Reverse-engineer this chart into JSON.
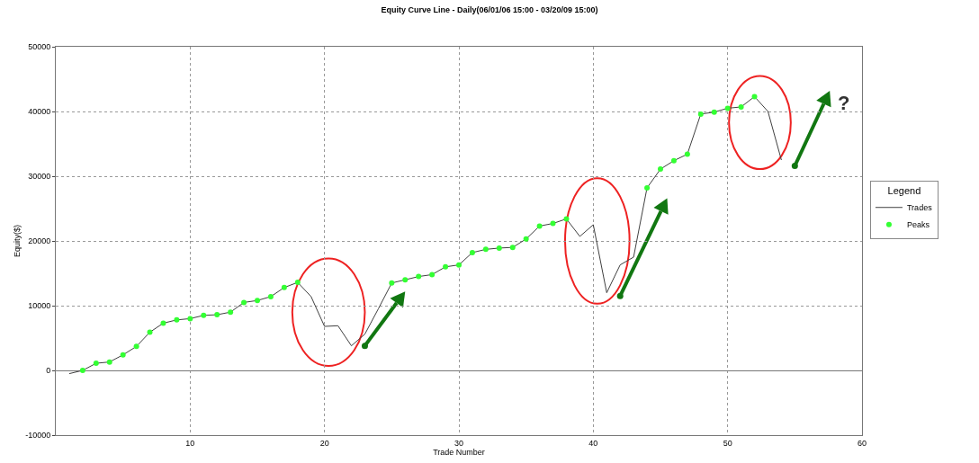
{
  "chart_data": {
    "type": "line",
    "title": "Equity Curve Line - Daily(06/01/06 15:00 - 03/20/09 15:00)",
    "xlabel": "Trade Number",
    "ylabel": "Equity($)",
    "legend_title": "Legend",
    "x": [
      1,
      2,
      3,
      4,
      5,
      6,
      7,
      8,
      9,
      10,
      11,
      12,
      13,
      14,
      15,
      16,
      17,
      18,
      19,
      20,
      21,
      22,
      23,
      24,
      25,
      26,
      27,
      28,
      29,
      30,
      31,
      32,
      33,
      34,
      35,
      36,
      37,
      38,
      39,
      40,
      41,
      42,
      43,
      44,
      45,
      46,
      47,
      48,
      49,
      50,
      51,
      52,
      53,
      54
    ],
    "series": [
      {
        "name": "Trades",
        "color": "#404040",
        "marker": "none",
        "values": [
          -500,
          0,
          1100,
          1300,
          2400,
          3700,
          5900,
          7300,
          7800,
          8000,
          8500,
          8600,
          9000,
          10500,
          10800,
          11400,
          12800,
          13600,
          11400,
          6800,
          6900,
          3800,
          5600,
          9500,
          13500,
          14000,
          14500,
          14800,
          16000,
          16300,
          18200,
          18700,
          18900,
          19000,
          20300,
          22300,
          22700,
          23400,
          20700,
          22500,
          12000,
          16300,
          17500,
          28200,
          31100,
          32400,
          33400,
          39600,
          39900,
          40500,
          40700,
          42300,
          40000,
          32500
        ]
      },
      {
        "name": "Peaks",
        "type": "scatter",
        "color": "#33ff33",
        "marker": "circle",
        "x": [
          2,
          3,
          4,
          5,
          6,
          7,
          8,
          9,
          10,
          11,
          12,
          13,
          14,
          15,
          16,
          17,
          18,
          25,
          26,
          27,
          28,
          29,
          30,
          31,
          32,
          33,
          34,
          35,
          36,
          37,
          38,
          44,
          45,
          46,
          47,
          48,
          49,
          50,
          51,
          52
        ],
        "values": [
          0,
          1100,
          1300,
          2400,
          3700,
          5900,
          7300,
          7800,
          8000,
          8500,
          8600,
          9000,
          10500,
          10800,
          11400,
          12800,
          13600,
          13500,
          14000,
          14500,
          14800,
          16000,
          16300,
          18200,
          18700,
          18900,
          19000,
          20300,
          22300,
          22700,
          23400,
          28200,
          31100,
          32400,
          33400,
          39600,
          39900,
          40500,
          40700,
          42300
        ]
      }
    ],
    "xlim": [
      0,
      60
    ],
    "xticks": [
      10,
      20,
      30,
      40,
      50,
      60
    ],
    "ylim": [
      -10000,
      50000
    ],
    "yticks": [
      -10000,
      0,
      10000,
      20000,
      30000,
      40000,
      50000
    ],
    "grid": true,
    "legend": "right",
    "line_style": "solid",
    "annotations": [
      "?"
    ]
  }
}
